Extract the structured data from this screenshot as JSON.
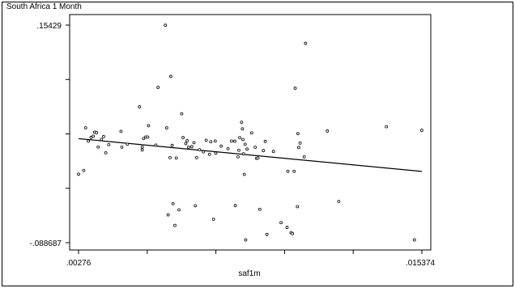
{
  "chart_data": {
    "type": "scatter",
    "title": "South Africa 1 Month",
    "xlabel": "saf1m",
    "ylabel": "",
    "xlim": [
      0.00276,
      0.015374
    ],
    "ylim": [
      -0.088687,
      0.15429
    ],
    "x_tick_labels": [
      ".00276",
      ".015374"
    ],
    "y_tick_labels": [
      ".15429",
      "-.088687"
    ],
    "x_ticks": [
      0.00276,
      0.005283,
      0.007806,
      0.010328,
      0.012851,
      0.015374
    ],
    "y_ticks": [
      0.15429,
      0.093546,
      0.032802,
      -0.027943,
      -0.088687
    ],
    "fit_line": {
      "x": [
        0.00276,
        0.015374
      ],
      "y": [
        0.0275,
        -0.0091
      ]
    },
    "points": [
      {
        "x": 0.00276,
        "y": -0.0122
      },
      {
        "x": 0.00295,
        "y": -0.0081
      },
      {
        "x": 0.00302,
        "y": 0.0396
      },
      {
        "x": 0.00312,
        "y": 0.0247
      },
      {
        "x": 0.00322,
        "y": 0.0288
      },
      {
        "x": 0.0033,
        "y": 0.0302
      },
      {
        "x": 0.00335,
        "y": 0.0347
      },
      {
        "x": 0.00342,
        "y": 0.0342
      },
      {
        "x": 0.00348,
        "y": 0.0181
      },
      {
        "x": 0.0036,
        "y": 0.0266
      },
      {
        "x": 0.00368,
        "y": 0.0297
      },
      {
        "x": 0.00376,
        "y": 0.0117
      },
      {
        "x": 0.00387,
        "y": 0.0207
      },
      {
        "x": 0.00432,
        "y": 0.0356
      },
      {
        "x": 0.00435,
        "y": 0.018
      },
      {
        "x": 0.00455,
        "y": 0.0213
      },
      {
        "x": 0.005,
        "y": 0.063
      },
      {
        "x": 0.0051,
        "y": 0.018
      },
      {
        "x": 0.0051,
        "y": 0.0149
      },
      {
        "x": 0.00515,
        "y": 0.0276
      },
      {
        "x": 0.00523,
        "y": 0.0293
      },
      {
        "x": 0.0053,
        "y": 0.0293
      },
      {
        "x": 0.00533,
        "y": 0.0419
      },
      {
        "x": 0.0056,
        "y": 0.0203
      },
      {
        "x": 0.00568,
        "y": 0.0847
      },
      {
        "x": 0.00595,
        "y": 0.1541
      },
      {
        "x": 0.006,
        "y": 0.0395
      },
      {
        "x": 0.00605,
        "y": -0.0576
      },
      {
        "x": 0.00612,
        "y": 0.0063
      },
      {
        "x": 0.00615,
        "y": 0.097
      },
      {
        "x": 0.0062,
        "y": 0.02
      },
      {
        "x": 0.00623,
        "y": -0.0451
      },
      {
        "x": 0.0063,
        "y": -0.0694
      },
      {
        "x": 0.00635,
        "y": 0.0058
      },
      {
        "x": 0.00645,
        "y": -0.052
      },
      {
        "x": 0.00655,
        "y": 0.0553
      },
      {
        "x": 0.0066,
        "y": 0.0287
      },
      {
        "x": 0.0067,
        "y": 0.022
      },
      {
        "x": 0.00675,
        "y": 0.0252
      },
      {
        "x": 0.0068,
        "y": 0.018
      },
      {
        "x": 0.00692,
        "y": 0.0185
      },
      {
        "x": 0.007,
        "y": 0.023
      },
      {
        "x": 0.00705,
        "y": -0.0475
      },
      {
        "x": 0.0071,
        "y": 0.0063
      },
      {
        "x": 0.0072,
        "y": 0.0151
      },
      {
        "x": 0.00735,
        "y": 0.0127
      },
      {
        "x": 0.00745,
        "y": 0.0257
      },
      {
        "x": 0.00757,
        "y": 0.01
      },
      {
        "x": 0.00762,
        "y": 0.024
      },
      {
        "x": 0.00772,
        "y": -0.0625
      },
      {
        "x": 0.00778,
        "y": 0.0248
      },
      {
        "x": 0.0078,
        "y": 0.0113
      },
      {
        "x": 0.008,
        "y": 0.0191
      },
      {
        "x": 0.00825,
        "y": 0.0163
      },
      {
        "x": 0.00838,
        "y": 0.0248
      },
      {
        "x": 0.0085,
        "y": 0.0246
      },
      {
        "x": 0.00852,
        "y": -0.0472
      },
      {
        "x": 0.00862,
        "y": 0.0072
      },
      {
        "x": 0.00865,
        "y": 0.0145
      },
      {
        "x": 0.00868,
        "y": 0.0286
      },
      {
        "x": 0.00875,
        "y": 0.0458
      },
      {
        "x": 0.00878,
        "y": 0.0384
      },
      {
        "x": 0.0088,
        "y": 0.0265
      },
      {
        "x": 0.00882,
        "y": 0.0105
      },
      {
        "x": 0.00885,
        "y": -0.0125
      },
      {
        "x": 0.00888,
        "y": 0.0212
      },
      {
        "x": 0.0089,
        "y": -0.0856
      },
      {
        "x": 0.00895,
        "y": 0.0158
      },
      {
        "x": 0.00912,
        "y": 0.0339
      },
      {
        "x": 0.00925,
        "y": 0.0179
      },
      {
        "x": 0.0093,
        "y": 0.0055
      },
      {
        "x": 0.00935,
        "y": 0.0058
      },
      {
        "x": 0.00942,
        "y": -0.0514
      },
      {
        "x": 0.00955,
        "y": 0.0141
      },
      {
        "x": 0.00962,
        "y": 0.0244
      },
      {
        "x": 0.00968,
        "y": -0.0795
      },
      {
        "x": 0.00992,
        "y": 0.0132
      },
      {
        "x": 0.0102,
        "y": -0.0663
      },
      {
        "x": 0.01042,
        "y": -0.0716
      },
      {
        "x": 0.01045,
        "y": -0.009
      },
      {
        "x": 0.01057,
        "y": -0.0775
      },
      {
        "x": 0.01062,
        "y": -0.0785
      },
      {
        "x": 0.01068,
        "y": -0.009
      },
      {
        "x": 0.01072,
        "y": 0.0838
      },
      {
        "x": 0.0108,
        "y": -0.0485
      },
      {
        "x": 0.01082,
        "y": 0.0331
      },
      {
        "x": 0.01085,
        "y": 0.0176
      },
      {
        "x": 0.0109,
        "y": 0.0225
      },
      {
        "x": 0.01105,
        "y": 0.0072
      },
      {
        "x": 0.0111,
        "y": 0.1339
      },
      {
        "x": 0.0119,
        "y": 0.036
      },
      {
        "x": 0.01232,
        "y": -0.0426
      },
      {
        "x": 0.01407,
        "y": 0.0408
      },
      {
        "x": 0.0151,
        "y": -0.0856
      },
      {
        "x": 0.01537,
        "y": 0.0368
      }
    ]
  }
}
